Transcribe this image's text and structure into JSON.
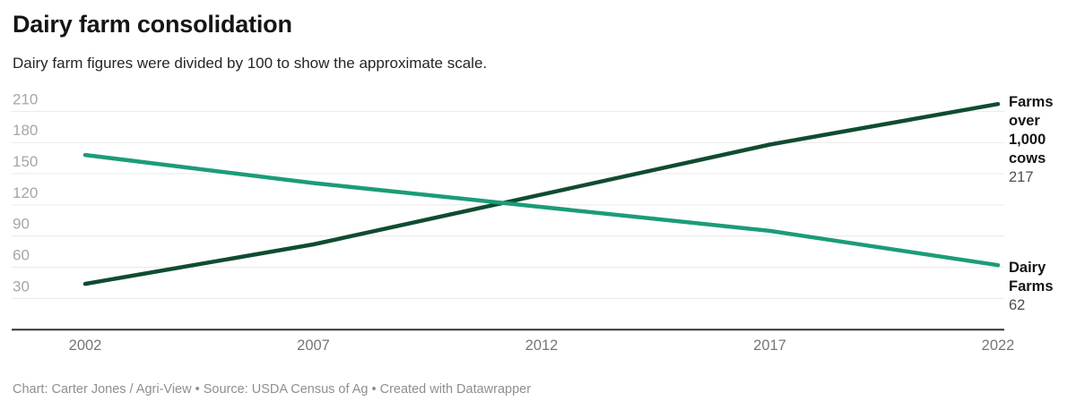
{
  "header": {
    "title": "Dairy farm consolidation",
    "subtitle": "Dairy farm figures were divided by 100 to show the approximate scale."
  },
  "chart_data": {
    "type": "line",
    "title": "Dairy farm consolidation",
    "subtitle": "Dairy farm figures were divided by 100 to show the approximate scale.",
    "x": [
      "2002",
      "2007",
      "2012",
      "2017",
      "2022"
    ],
    "yticks": [
      30,
      60,
      90,
      120,
      150,
      180,
      210
    ],
    "ylim": [
      0,
      230
    ],
    "grid": "horizontal-only",
    "legend_position": "end-of-line-labels-right",
    "series": [
      {
        "name": "Farms over 1,000 cows",
        "values": [
          44,
          82,
          130,
          178,
          217
        ],
        "color": "#0f4c31",
        "end_label": "Farms over 1,000 cows",
        "end_value": "217"
      },
      {
        "name": "Dairy Farms",
        "values": [
          168,
          141,
          118,
          95,
          62
        ],
        "color": "#1b9c78",
        "end_label": "Dairy Farms",
        "end_value": "62"
      }
    ],
    "colors": {
      "gridline": "#e9e9e9",
      "axis_line": "#333333",
      "ytick_label": "#a6a6a6",
      "xtick_label": "#767676"
    }
  },
  "footer": {
    "text": "Chart: Carter Jones / Agri-View • Source: USDA Census of Ag • Created with Datawrapper"
  }
}
